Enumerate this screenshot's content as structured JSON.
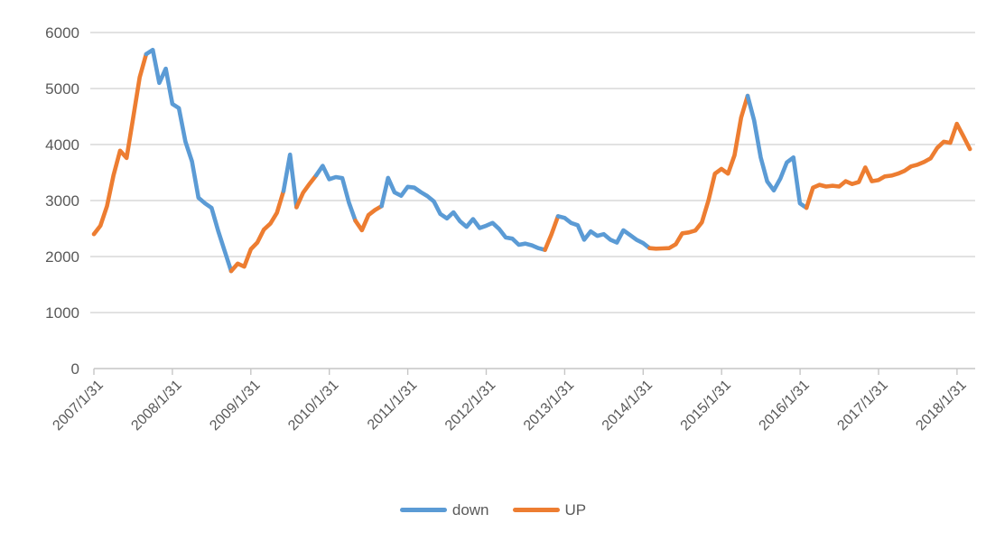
{
  "chart_data": {
    "type": "line",
    "title": "",
    "xlabel": "",
    "ylabel": "",
    "ylim": [
      0,
      6000
    ],
    "y_ticks": [
      0,
      1000,
      2000,
      3000,
      4000,
      5000,
      6000
    ],
    "x_tick_labels": [
      "2007/1/31",
      "2008/1/31",
      "2009/1/31",
      "2010/1/31",
      "2011/1/31",
      "2012/1/31",
      "2013/1/31",
      "2014/1/31",
      "2015/1/31",
      "2016/1/31",
      "2017/1/31",
      "2018/1/31"
    ],
    "x_frequency": "monthly",
    "x_range": [
      "2007/1",
      "2018/3"
    ],
    "grid": "horizontal-only",
    "legend_position": "bottom-center",
    "legend": [
      {
        "label": "down",
        "color": "#5B9BD5"
      },
      {
        "label": "UP",
        "color": "#ED7D31"
      }
    ],
    "series_encoding": "points are monthly values; s = color of segment from this point to the next: U = UP (orange), D = down (blue)",
    "points": [
      {
        "v": 2400,
        "s": "U"
      },
      {
        "v": 2550,
        "s": "U"
      },
      {
        "v": 2900,
        "s": "U"
      },
      {
        "v": 3450,
        "s": "U"
      },
      {
        "v": 3890,
        "s": "U"
      },
      {
        "v": 3760,
        "s": "U"
      },
      {
        "v": 4470,
        "s": "U"
      },
      {
        "v": 5200,
        "s": "U"
      },
      {
        "v": 5615,
        "s": "D"
      },
      {
        "v": 5690,
        "s": "D"
      },
      {
        "v": 5100,
        "s": "D"
      },
      {
        "v": 5355,
        "s": "D"
      },
      {
        "v": 4725,
        "s": "D"
      },
      {
        "v": 4650,
        "s": "D"
      },
      {
        "v": 4050,
        "s": "D"
      },
      {
        "v": 3700,
        "s": "D"
      },
      {
        "v": 3050,
        "s": "D"
      },
      {
        "v": 2950,
        "s": "D"
      },
      {
        "v": 2870,
        "s": "D"
      },
      {
        "v": 2460,
        "s": "D"
      },
      {
        "v": 2100,
        "s": "D"
      },
      {
        "v": 1740,
        "s": "U"
      },
      {
        "v": 1875,
        "s": "U"
      },
      {
        "v": 1820,
        "s": "U"
      },
      {
        "v": 2130,
        "s": "U"
      },
      {
        "v": 2250,
        "s": "U"
      },
      {
        "v": 2480,
        "s": "U"
      },
      {
        "v": 2590,
        "s": "U"
      },
      {
        "v": 2780,
        "s": "U"
      },
      {
        "v": 3170,
        "s": "D"
      },
      {
        "v": 3820,
        "s": "D"
      },
      {
        "v": 2880,
        "s": "U"
      },
      {
        "v": 3140,
        "s": "U"
      },
      {
        "v": 3300,
        "s": "U"
      },
      {
        "v": 3450,
        "s": "D"
      },
      {
        "v": 3620,
        "s": "D"
      },
      {
        "v": 3380,
        "s": "D"
      },
      {
        "v": 3420,
        "s": "D"
      },
      {
        "v": 3400,
        "s": "D"
      },
      {
        "v": 2965,
        "s": "D"
      },
      {
        "v": 2640,
        "s": "U"
      },
      {
        "v": 2470,
        "s": "U"
      },
      {
        "v": 2740,
        "s": "U"
      },
      {
        "v": 2830,
        "s": "U"
      },
      {
        "v": 2900,
        "s": "D"
      },
      {
        "v": 3405,
        "s": "D"
      },
      {
        "v": 3145,
        "s": "D"
      },
      {
        "v": 3085,
        "s": "D"
      },
      {
        "v": 3245,
        "s": "D"
      },
      {
        "v": 3230,
        "s": "D"
      },
      {
        "v": 3150,
        "s": "D"
      },
      {
        "v": 3080,
        "s": "D"
      },
      {
        "v": 2985,
        "s": "D"
      },
      {
        "v": 2760,
        "s": "D"
      },
      {
        "v": 2680,
        "s": "D"
      },
      {
        "v": 2790,
        "s": "D"
      },
      {
        "v": 2630,
        "s": "D"
      },
      {
        "v": 2530,
        "s": "D"
      },
      {
        "v": 2670,
        "s": "D"
      },
      {
        "v": 2510,
        "s": "D"
      },
      {
        "v": 2550,
        "s": "D"
      },
      {
        "v": 2600,
        "s": "D"
      },
      {
        "v": 2490,
        "s": "D"
      },
      {
        "v": 2340,
        "s": "D"
      },
      {
        "v": 2320,
        "s": "D"
      },
      {
        "v": 2210,
        "s": "D"
      },
      {
        "v": 2230,
        "s": "D"
      },
      {
        "v": 2200,
        "s": "D"
      },
      {
        "v": 2150,
        "s": "D"
      },
      {
        "v": 2120,
        "s": "U"
      },
      {
        "v": 2400,
        "s": "U"
      },
      {
        "v": 2720,
        "s": "D"
      },
      {
        "v": 2690,
        "s": "D"
      },
      {
        "v": 2600,
        "s": "D"
      },
      {
        "v": 2560,
        "s": "D"
      },
      {
        "v": 2300,
        "s": "D"
      },
      {
        "v": 2450,
        "s": "D"
      },
      {
        "v": 2370,
        "s": "D"
      },
      {
        "v": 2400,
        "s": "D"
      },
      {
        "v": 2300,
        "s": "D"
      },
      {
        "v": 2250,
        "s": "D"
      },
      {
        "v": 2470,
        "s": "D"
      },
      {
        "v": 2385,
        "s": "D"
      },
      {
        "v": 2300,
        "s": "D"
      },
      {
        "v": 2240,
        "s": "D"
      },
      {
        "v": 2150,
        "s": "U"
      },
      {
        "v": 2140,
        "s": "U"
      },
      {
        "v": 2145,
        "s": "U"
      },
      {
        "v": 2150,
        "s": "U"
      },
      {
        "v": 2220,
        "s": "U"
      },
      {
        "v": 2415,
        "s": "U"
      },
      {
        "v": 2430,
        "s": "U"
      },
      {
        "v": 2465,
        "s": "U"
      },
      {
        "v": 2610,
        "s": "U"
      },
      {
        "v": 3000,
        "s": "U"
      },
      {
        "v": 3480,
        "s": "U"
      },
      {
        "v": 3565,
        "s": "U"
      },
      {
        "v": 3480,
        "s": "U"
      },
      {
        "v": 3810,
        "s": "U"
      },
      {
        "v": 4480,
        "s": "U"
      },
      {
        "v": 4870,
        "s": "D"
      },
      {
        "v": 4430,
        "s": "D"
      },
      {
        "v": 3770,
        "s": "D"
      },
      {
        "v": 3340,
        "s": "D"
      },
      {
        "v": 3180,
        "s": "D"
      },
      {
        "v": 3390,
        "s": "D"
      },
      {
        "v": 3680,
        "s": "D"
      },
      {
        "v": 3770,
        "s": "D"
      },
      {
        "v": 2950,
        "s": "D"
      },
      {
        "v": 2870,
        "s": "U"
      },
      {
        "v": 3230,
        "s": "U"
      },
      {
        "v": 3280,
        "s": "U"
      },
      {
        "v": 3250,
        "s": "U"
      },
      {
        "v": 3265,
        "s": "U"
      },
      {
        "v": 3250,
        "s": "U"
      },
      {
        "v": 3345,
        "s": "U"
      },
      {
        "v": 3295,
        "s": "U"
      },
      {
        "v": 3330,
        "s": "U"
      },
      {
        "v": 3590,
        "s": "U"
      },
      {
        "v": 3345,
        "s": "U"
      },
      {
        "v": 3365,
        "s": "U"
      },
      {
        "v": 3430,
        "s": "U"
      },
      {
        "v": 3445,
        "s": "U"
      },
      {
        "v": 3480,
        "s": "U"
      },
      {
        "v": 3530,
        "s": "U"
      },
      {
        "v": 3610,
        "s": "U"
      },
      {
        "v": 3640,
        "s": "U"
      },
      {
        "v": 3690,
        "s": "U"
      },
      {
        "v": 3755,
        "s": "U"
      },
      {
        "v": 3940,
        "s": "U"
      },
      {
        "v": 4050,
        "s": "U"
      },
      {
        "v": 4030,
        "s": "U"
      },
      {
        "v": 4370,
        "s": "U"
      },
      {
        "v": 4150,
        "s": "U"
      },
      {
        "v": 3920,
        "s": "U"
      }
    ]
  },
  "style": {
    "up_color": "#ED7D31",
    "down_color": "#5B9BD5",
    "axis_text_color": "#595959",
    "gridline_color": "#D9D9D9",
    "axis_line_color": "#C6C6C6",
    "background": "#FFFFFF"
  }
}
